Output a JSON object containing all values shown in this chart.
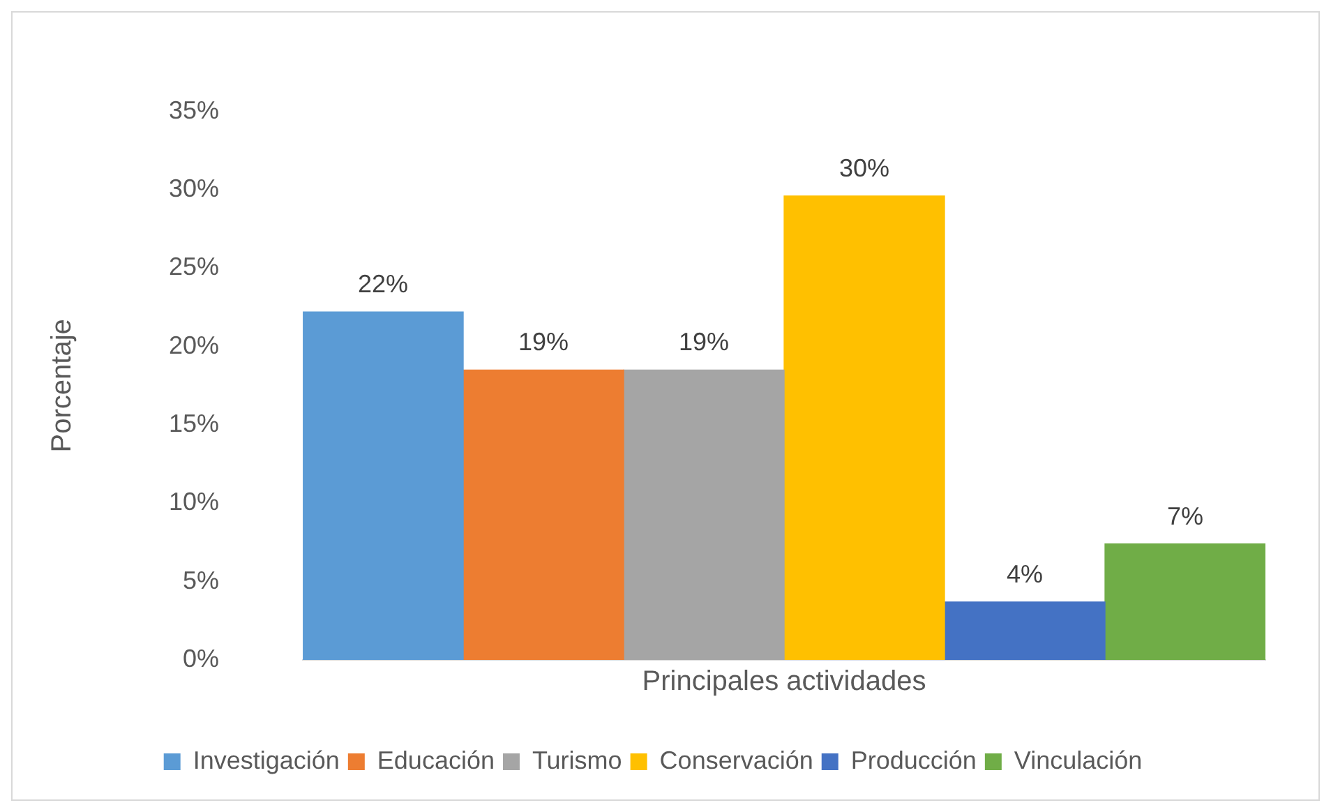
{
  "chart_data": {
    "type": "bar",
    "xlabel": "Principales actividades",
    "ylabel": "Porcentaje",
    "categories": [
      null
    ],
    "series": [
      {
        "name": "Investigación",
        "color": "#5b9bd5",
        "values": [
          22.2
        ],
        "value_labels": [
          "22%"
        ]
      },
      {
        "name": "Educación",
        "color": "#ed7d31",
        "values": [
          18.5
        ],
        "value_labels": [
          "19%"
        ]
      },
      {
        "name": "Turismo",
        "color": "#a5a5a5",
        "values": [
          18.5
        ],
        "value_labels": [
          "19%"
        ]
      },
      {
        "name": "Conservación",
        "color": "#ffc000",
        "values": [
          29.6
        ],
        "value_labels": [
          "30%"
        ]
      },
      {
        "name": "Producción",
        "color": "#4472c4",
        "values": [
          3.7
        ],
        "value_labels": [
          "4%"
        ]
      },
      {
        "name": "Vinculación",
        "color": "#70ad47",
        "values": [
          7.4
        ],
        "value_labels": [
          "7%"
        ]
      }
    ],
    "ylim": [
      0,
      35
    ],
    "yticks": [
      {
        "value": 0,
        "label": "0%"
      },
      {
        "value": 5,
        "label": "5%"
      },
      {
        "value": 10,
        "label": "10%"
      },
      {
        "value": 15,
        "label": "15%"
      },
      {
        "value": 20,
        "label": "20%"
      },
      {
        "value": 25,
        "label": "25%"
      },
      {
        "value": 30,
        "label": "30%"
      },
      {
        "value": 35,
        "label": "35%"
      }
    ],
    "legend": "bottom"
  }
}
